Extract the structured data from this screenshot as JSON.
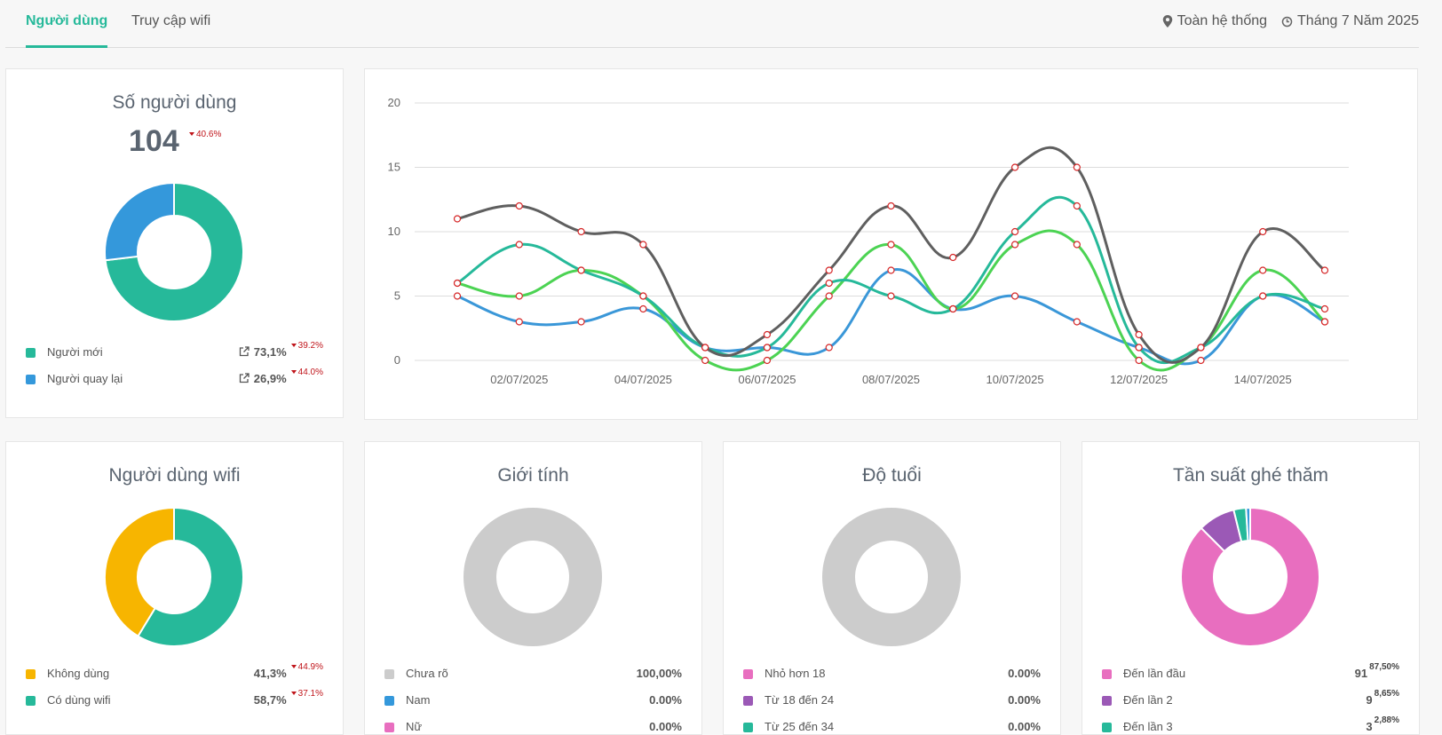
{
  "nav": {
    "tabs": [
      "Người dùng",
      "Truy cập wifi"
    ],
    "scope": "Toàn hệ thống",
    "period": "Tháng 7 Năm 2025"
  },
  "users_card": {
    "title": "Số người dùng",
    "total": "104",
    "total_change": "40.6%",
    "legend": [
      {
        "label": "Người mới",
        "percent": "73,1%",
        "change": "39.2%",
        "color": "#26b99a"
      },
      {
        "label": "Người quay lại",
        "percent": "26,9%",
        "change": "44.0%",
        "color": "#3498db"
      }
    ]
  },
  "wifi_card": {
    "title": "Người dùng wifi",
    "legend": [
      {
        "label": "Không dùng",
        "percent": "41,3%",
        "change": "44.9%",
        "color": "#f7b500"
      },
      {
        "label": "Có dùng wifi",
        "percent": "58,7%",
        "change": "37.1%",
        "color": "#26b99a"
      }
    ]
  },
  "gender_card": {
    "title": "Giới tính",
    "legend": [
      {
        "label": "Chưa rõ",
        "percent": "100,00%",
        "color": "#cccccc"
      },
      {
        "label": "Nam",
        "percent": "0.00%",
        "color": "#3498db"
      },
      {
        "label": "Nữ",
        "percent": "0.00%",
        "color": "#e86ebf"
      }
    ]
  },
  "age_card": {
    "title": "Độ tuổi",
    "legend": [
      {
        "label": "Nhỏ hơn 18",
        "percent": "0.00%",
        "color": "#e86ebf"
      },
      {
        "label": "Từ 18 đến 24",
        "percent": "0.00%",
        "color": "#9b59b6"
      },
      {
        "label": "Từ 25 đến 34",
        "percent": "0.00%",
        "color": "#26b99a"
      }
    ]
  },
  "freq_card": {
    "title": "Tần suất ghé thăm",
    "legend": [
      {
        "label": "Đến lần đầu",
        "count": "91",
        "percent": "87,50%",
        "color": "#e86ebf"
      },
      {
        "label": "Đến lần 2",
        "count": "9",
        "percent": "8,65%",
        "color": "#9b59b6"
      },
      {
        "label": "Đến lần 3",
        "count": "3",
        "percent": "2,88%",
        "color": "#26b99a"
      }
    ]
  },
  "donuts": {
    "users": [
      {
        "value": 73.1,
        "color": "#26b99a"
      },
      {
        "value": 26.9,
        "color": "#3498db"
      }
    ],
    "wifi": [
      {
        "value": 58.7,
        "color": "#26b99a"
      },
      {
        "value": 41.3,
        "color": "#f7b500"
      }
    ],
    "gender": [
      {
        "value": 100,
        "color": "#cccccc"
      }
    ],
    "age": [
      {
        "value": 100,
        "color": "#cccccc"
      }
    ],
    "freq": [
      {
        "value": 87.5,
        "color": "#e86ebf"
      },
      {
        "value": 8.65,
        "color": "#9b59b6"
      },
      {
        "value": 2.88,
        "color": "#26b99a"
      },
      {
        "value": 0.97,
        "color": "#3498db"
      }
    ]
  },
  "chart_data": {
    "type": "line",
    "x": [
      "01/07/2025",
      "02/07/2025",
      "03/07/2025",
      "04/07/2025",
      "05/07/2025",
      "06/07/2025",
      "07/07/2025",
      "08/07/2025",
      "09/07/2025",
      "10/07/2025",
      "11/07/2025",
      "12/07/2025",
      "13/07/2025",
      "14/07/2025",
      "15/07/2025"
    ],
    "x_tick_labels": [
      "02/07/2025",
      "04/07/2025",
      "06/07/2025",
      "08/07/2025",
      "10/07/2025",
      "12/07/2025",
      "14/07/2025"
    ],
    "y_ticks": [
      0,
      5,
      10,
      15,
      20
    ],
    "ylim": [
      0,
      20
    ],
    "grid": true,
    "series": [
      {
        "color": "#5f5f5f",
        "values": [
          11,
          12,
          10,
          9,
          1,
          2,
          7,
          12,
          8,
          15,
          15,
          2,
          1,
          10,
          7
        ]
      },
      {
        "color": "#26b99a",
        "values": [
          6,
          9,
          7,
          5,
          1,
          1,
          6,
          5,
          4,
          10,
          12,
          1,
          1,
          5,
          4
        ]
      },
      {
        "color": "#4cd353",
        "values": [
          6,
          5,
          7,
          5,
          0,
          0,
          5,
          9,
          4,
          9,
          9,
          0,
          1,
          7,
          3
        ]
      },
      {
        "color": "#3a97d8",
        "values": [
          5,
          3,
          3,
          4,
          1,
          1,
          1,
          7,
          4,
          5,
          3,
          1,
          0,
          5,
          3
        ]
      }
    ]
  }
}
